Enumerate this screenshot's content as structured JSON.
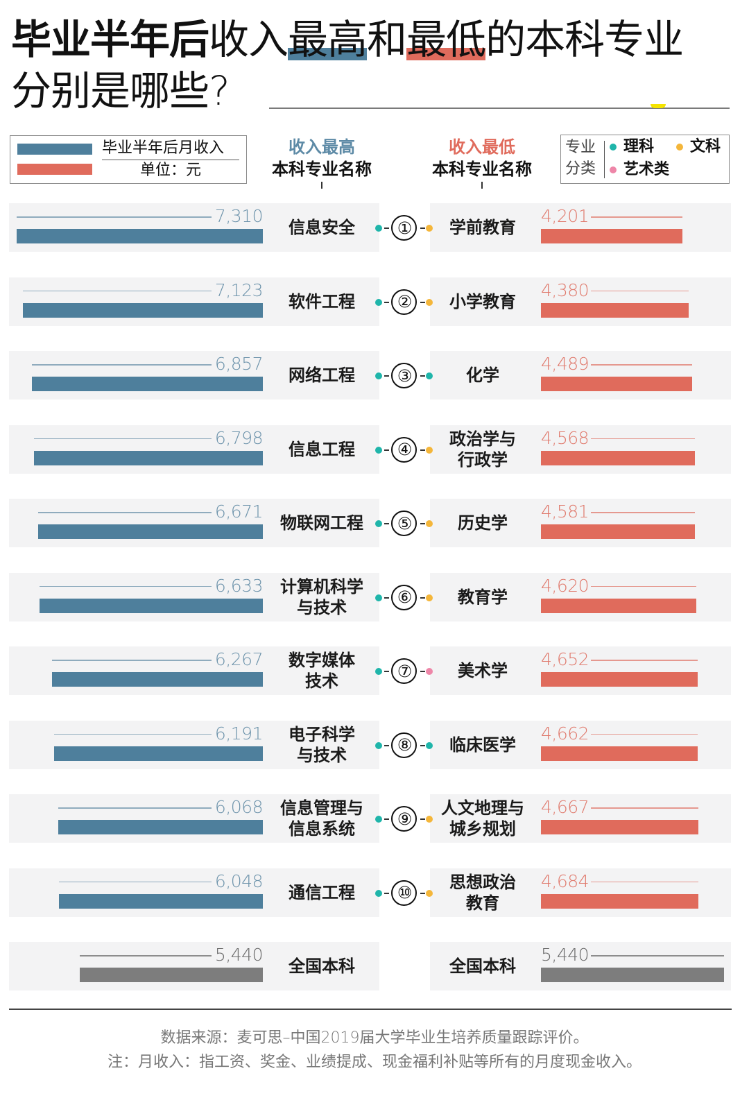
{
  "title": {
    "bold_part": "毕业半年后",
    "part_a": "收入",
    "highlight_high": "最高",
    "part_b": "和",
    "highlight_low": "最低",
    "part_c": "的本科专业",
    "line2": "分别是哪些?"
  },
  "legend": {
    "series_label": "毕业半年后月收入",
    "unit": "单位：元",
    "colors": {
      "high": "#4e7f9c",
      "low": "#e06b5c",
      "national": "#7d7d7d"
    }
  },
  "headers": {
    "high": {
      "line1": "收入最高",
      "line2": "本科专业名称"
    },
    "low": {
      "line1": "收入最低",
      "line2": "本科专业名称"
    }
  },
  "category_legend": {
    "label": "专业分类",
    "items": [
      {
        "name": "理科",
        "color": "#1fb5aa"
      },
      {
        "name": "文科",
        "color": "#f4b63a"
      },
      {
        "name": "艺术类",
        "color": "#ee86a8"
      }
    ]
  },
  "rows": [
    {
      "rank": "①",
      "high_name": "信息安全",
      "high_value": 7310,
      "high_label": "7,310",
      "high_cat": "理科",
      "low_name": "学前教育",
      "low_value": 4201,
      "low_label": "4,201",
      "low_cat": "文科"
    },
    {
      "rank": "②",
      "high_name": "软件工程",
      "high_value": 7123,
      "high_label": "7,123",
      "high_cat": "理科",
      "low_name": "小学教育",
      "low_value": 4380,
      "low_label": "4,380",
      "low_cat": "文科"
    },
    {
      "rank": "③",
      "high_name": "网络工程",
      "high_value": 6857,
      "high_label": "6,857",
      "high_cat": "理科",
      "low_name": "化学",
      "low_value": 4489,
      "low_label": "4,489",
      "low_cat": "理科"
    },
    {
      "rank": "④",
      "high_name": "信息工程",
      "high_value": 6798,
      "high_label": "6,798",
      "high_cat": "理科",
      "low_name": "政治学与\n行政学",
      "low_value": 4568,
      "low_label": "4,568",
      "low_cat": "文科"
    },
    {
      "rank": "⑤",
      "high_name": "物联网工程",
      "high_value": 6671,
      "high_label": "6,671",
      "high_cat": "理科",
      "low_name": "历史学",
      "low_value": 4581,
      "low_label": "4,581",
      "low_cat": "文科"
    },
    {
      "rank": "⑥",
      "high_name": "计算机科学\n与技术",
      "high_value": 6633,
      "high_label": "6,633",
      "high_cat": "理科",
      "low_name": "教育学",
      "low_value": 4620,
      "low_label": "4,620",
      "low_cat": "文科"
    },
    {
      "rank": "⑦",
      "high_name": "数字媒体\n技术",
      "high_value": 6267,
      "high_label": "6,267",
      "high_cat": "理科",
      "low_name": "美术学",
      "low_value": 4652,
      "low_label": "4,652",
      "low_cat": "艺术类"
    },
    {
      "rank": "⑧",
      "high_name": "电子科学\n与技术",
      "high_value": 6191,
      "high_label": "6,191",
      "high_cat": "理科",
      "low_name": "临床医学",
      "low_value": 4662,
      "low_label": "4,662",
      "low_cat": "理科"
    },
    {
      "rank": "⑨",
      "high_name": "信息管理与\n信息系统",
      "high_value": 6068,
      "high_label": "6,068",
      "high_cat": "理科",
      "low_name": "人文地理与\n城乡规划",
      "low_value": 4667,
      "low_label": "4,667",
      "low_cat": "文科"
    },
    {
      "rank": "⑩",
      "high_name": "通信工程",
      "high_value": 6048,
      "high_label": "6,048",
      "high_cat": "理科",
      "low_name": "思想政治\n教育",
      "low_value": 4684,
      "low_label": "4,684",
      "low_cat": "文科"
    }
  ],
  "national": {
    "name": "全国本科",
    "value": 5440,
    "label": "5,440"
  },
  "footer": {
    "source": "数据来源：麦可思–中国2019届大学毕业生培养质量跟踪评价。",
    "note": "注：月收入：指工资、奖金、业绩提成、现金福利补贴等所有的月度现金收入。"
  },
  "chart_data": {
    "type": "bar",
    "title": "毕业半年后收入最高和最低的本科专业分别是哪些?",
    "ylabel": "毕业半年后月收入（单位：元）",
    "series": [
      {
        "name": "收入最高本科专业",
        "color": "#4e7f9c",
        "categories": [
          "信息安全",
          "软件工程",
          "网络工程",
          "信息工程",
          "物联网工程",
          "计算机科学与技术",
          "数字媒体技术",
          "电子科学与技术",
          "信息管理与信息系统",
          "通信工程"
        ],
        "values": [
          7310,
          7123,
          6857,
          6798,
          6671,
          6633,
          6267,
          6191,
          6068,
          6048
        ]
      },
      {
        "name": "收入最低本科专业",
        "color": "#e06b5c",
        "categories": [
          "学前教育",
          "小学教育",
          "化学",
          "政治学与行政学",
          "历史学",
          "教育学",
          "美术学",
          "临床医学",
          "人文地理与城乡规划",
          "思想政治教育"
        ],
        "values": [
          4201,
          4380,
          4489,
          4568,
          4581,
          4620,
          4652,
          4662,
          4667,
          4684
        ]
      }
    ],
    "reference": {
      "name": "全国本科",
      "value": 5440
    },
    "legend": [
      "毕业半年后月收入",
      "理科",
      "文科",
      "艺术类"
    ],
    "orientation": "horizontal",
    "grid": false
  }
}
